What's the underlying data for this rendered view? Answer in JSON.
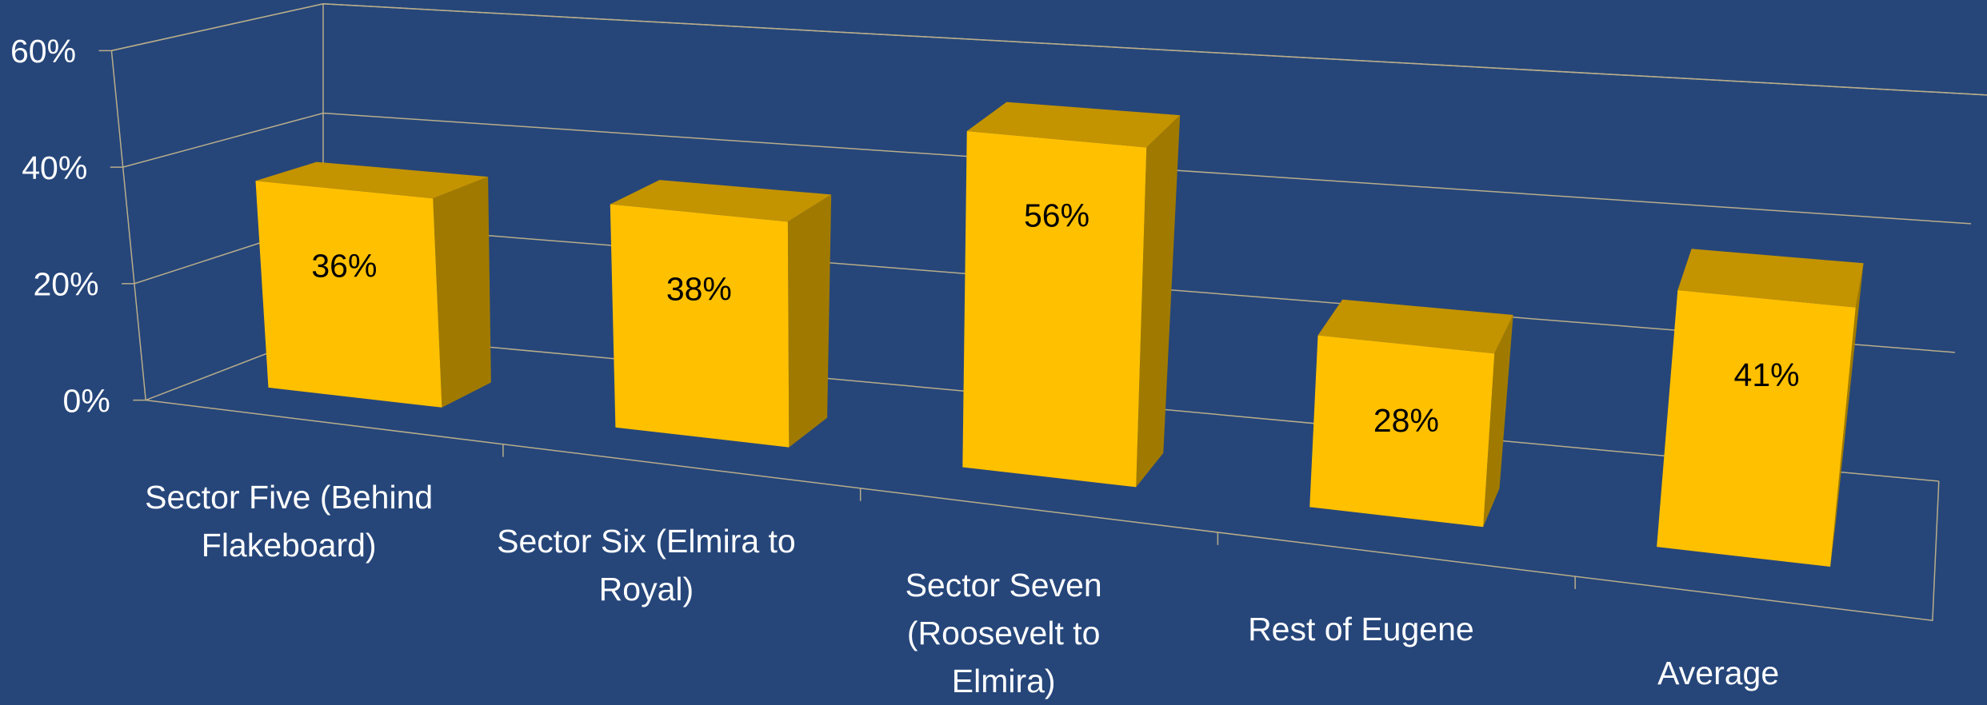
{
  "chart_data": {
    "type": "bar3d",
    "categories": [
      "Sector Five (Behind Flakeboard)",
      "Sector Six (Elmira to Royal)",
      "Sector Seven (Roosevelt to Elmira)",
      "Rest of Eugene",
      "Average"
    ],
    "values": [
      36,
      38,
      56,
      28,
      41
    ],
    "value_labels": [
      "36%",
      "38%",
      "56%",
      "28%",
      "41%"
    ],
    "color": "#ffc000",
    "ylim": [
      0,
      60
    ],
    "yticks": [
      {
        "value": 0,
        "label": "0%"
      },
      {
        "value": 20,
        "label": "20%"
      },
      {
        "value": 40,
        "label": "40%"
      },
      {
        "value": 60,
        "label": "60%"
      }
    ],
    "grid": true
  }
}
